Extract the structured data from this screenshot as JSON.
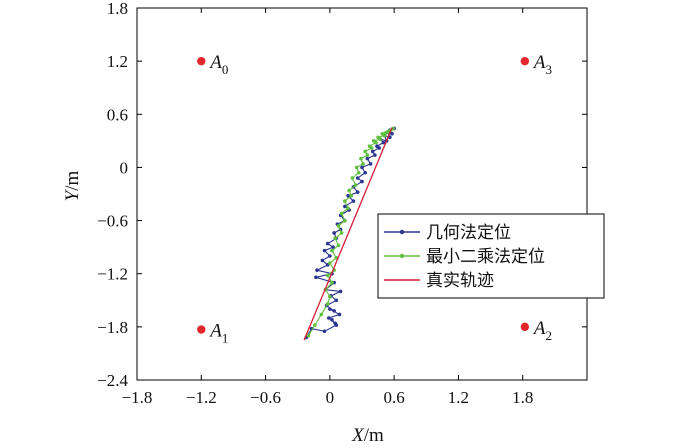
{
  "chart_data": {
    "type": "line",
    "xlabel": {
      "var": "X",
      "unit": "/m"
    },
    "ylabel": {
      "var": "Y",
      "unit": "/m"
    },
    "xlim": [
      -1.8,
      2.4
    ],
    "ylim": [
      -2.4,
      1.8
    ],
    "xticks": [
      "−1.8",
      "−1.2",
      "−0.6",
      "0",
      "0.6",
      "1.2",
      "1.8"
    ],
    "xtick_values": [
      -1.8,
      -1.2,
      -0.6,
      0,
      0.6,
      1.2,
      1.8
    ],
    "yticks": [
      "1.8",
      "1.2",
      "0.6",
      "0",
      "−0.6",
      "−1.2",
      "−1.8",
      "−2.4"
    ],
    "ytick_values": [
      1.8,
      1.2,
      0.6,
      0,
      -0.6,
      -1.2,
      -1.8,
      -2.4
    ],
    "grid": false,
    "legend_position": "right",
    "anchors": [
      {
        "name": "A",
        "sub": "0",
        "x": -1.2,
        "y": 1.2,
        "color": "#e3262b"
      },
      {
        "name": "A",
        "sub": "1",
        "x": -1.2,
        "y": -1.83,
        "color": "#e3262b"
      },
      {
        "name": "A",
        "sub": "2",
        "x": 1.82,
        "y": -1.8,
        "color": "#e3262b"
      },
      {
        "name": "A",
        "sub": "3",
        "x": 1.82,
        "y": 1.2,
        "color": "#e3262b"
      }
    ],
    "series": [
      {
        "name": "几何法定位",
        "color": "#2b3590",
        "marker": "dot",
        "x": [
          -0.22,
          -0.17,
          -0.05,
          0.06,
          0.02,
          0.05,
          -0.01,
          0.09,
          0.0,
          0.04,
          -0.03,
          0.06,
          0.01,
          0.1,
          -0.04,
          0.04,
          -0.13,
          0.02,
          -0.12,
          -0.02,
          -0.07,
          0.0,
          -0.05,
          0.03,
          -0.02,
          0.06,
          0.04,
          0.1,
          0.07,
          0.14,
          0.1,
          0.18,
          0.14,
          0.22,
          0.17,
          0.26,
          0.22,
          0.3,
          0.26,
          0.33,
          0.3,
          0.38,
          0.35,
          0.42,
          0.4,
          0.46,
          0.44,
          0.5,
          0.47,
          0.53,
          0.51,
          0.56,
          0.54,
          0.58,
          0.56,
          0.6
        ],
        "y": [
          -1.92,
          -1.82,
          -1.85,
          -1.78,
          -1.72,
          -1.76,
          -1.7,
          -1.66,
          -1.6,
          -1.62,
          -1.56,
          -1.5,
          -1.45,
          -1.4,
          -1.38,
          -1.3,
          -1.24,
          -1.2,
          -1.16,
          -1.1,
          -1.05,
          -1.0,
          -0.94,
          -0.9,
          -0.86,
          -0.8,
          -0.74,
          -0.7,
          -0.64,
          -0.6,
          -0.54,
          -0.48,
          -0.44,
          -0.38,
          -0.32,
          -0.28,
          -0.22,
          -0.16,
          -0.12,
          -0.06,
          0.0,
          0.04,
          0.1,
          0.14,
          0.18,
          0.22,
          0.24,
          0.28,
          0.32,
          0.3,
          0.36,
          0.34,
          0.4,
          0.38,
          0.42,
          0.44
        ]
      },
      {
        "name": "最小二乘法定位",
        "color": "#5fbf3f",
        "marker": "dot",
        "x": [
          -0.2,
          -0.14,
          -0.08,
          -0.02,
          0.0,
          -0.04,
          0.02,
          -0.02,
          0.04,
          0.0,
          0.06,
          0.02,
          0.08,
          0.05,
          0.11,
          0.08,
          0.14,
          0.11,
          0.17,
          0.14,
          0.2,
          0.18,
          0.24,
          0.21,
          0.27,
          0.25,
          0.31,
          0.29,
          0.35,
          0.33,
          0.39,
          0.37,
          0.43,
          0.41,
          0.47,
          0.45,
          0.51,
          0.49,
          0.54,
          0.52,
          0.57,
          0.55,
          0.59
        ],
        "y": [
          -1.9,
          -1.78,
          -1.66,
          -1.54,
          -1.46,
          -1.38,
          -1.3,
          -1.22,
          -1.16,
          -1.08,
          -1.02,
          -0.94,
          -0.88,
          -0.8,
          -0.74,
          -0.66,
          -0.6,
          -0.52,
          -0.46,
          -0.38,
          -0.32,
          -0.26,
          -0.2,
          -0.12,
          -0.06,
          0.0,
          0.04,
          0.1,
          0.14,
          0.18,
          0.22,
          0.24,
          0.28,
          0.3,
          0.32,
          0.34,
          0.36,
          0.38,
          0.4,
          0.39,
          0.42,
          0.41,
          0.44
        ]
      },
      {
        "name": "真实轨迹",
        "color": "#d81b3a",
        "marker": "none",
        "x": [
          -0.24,
          0.58
        ],
        "y": [
          -1.95,
          0.45
        ]
      }
    ]
  }
}
